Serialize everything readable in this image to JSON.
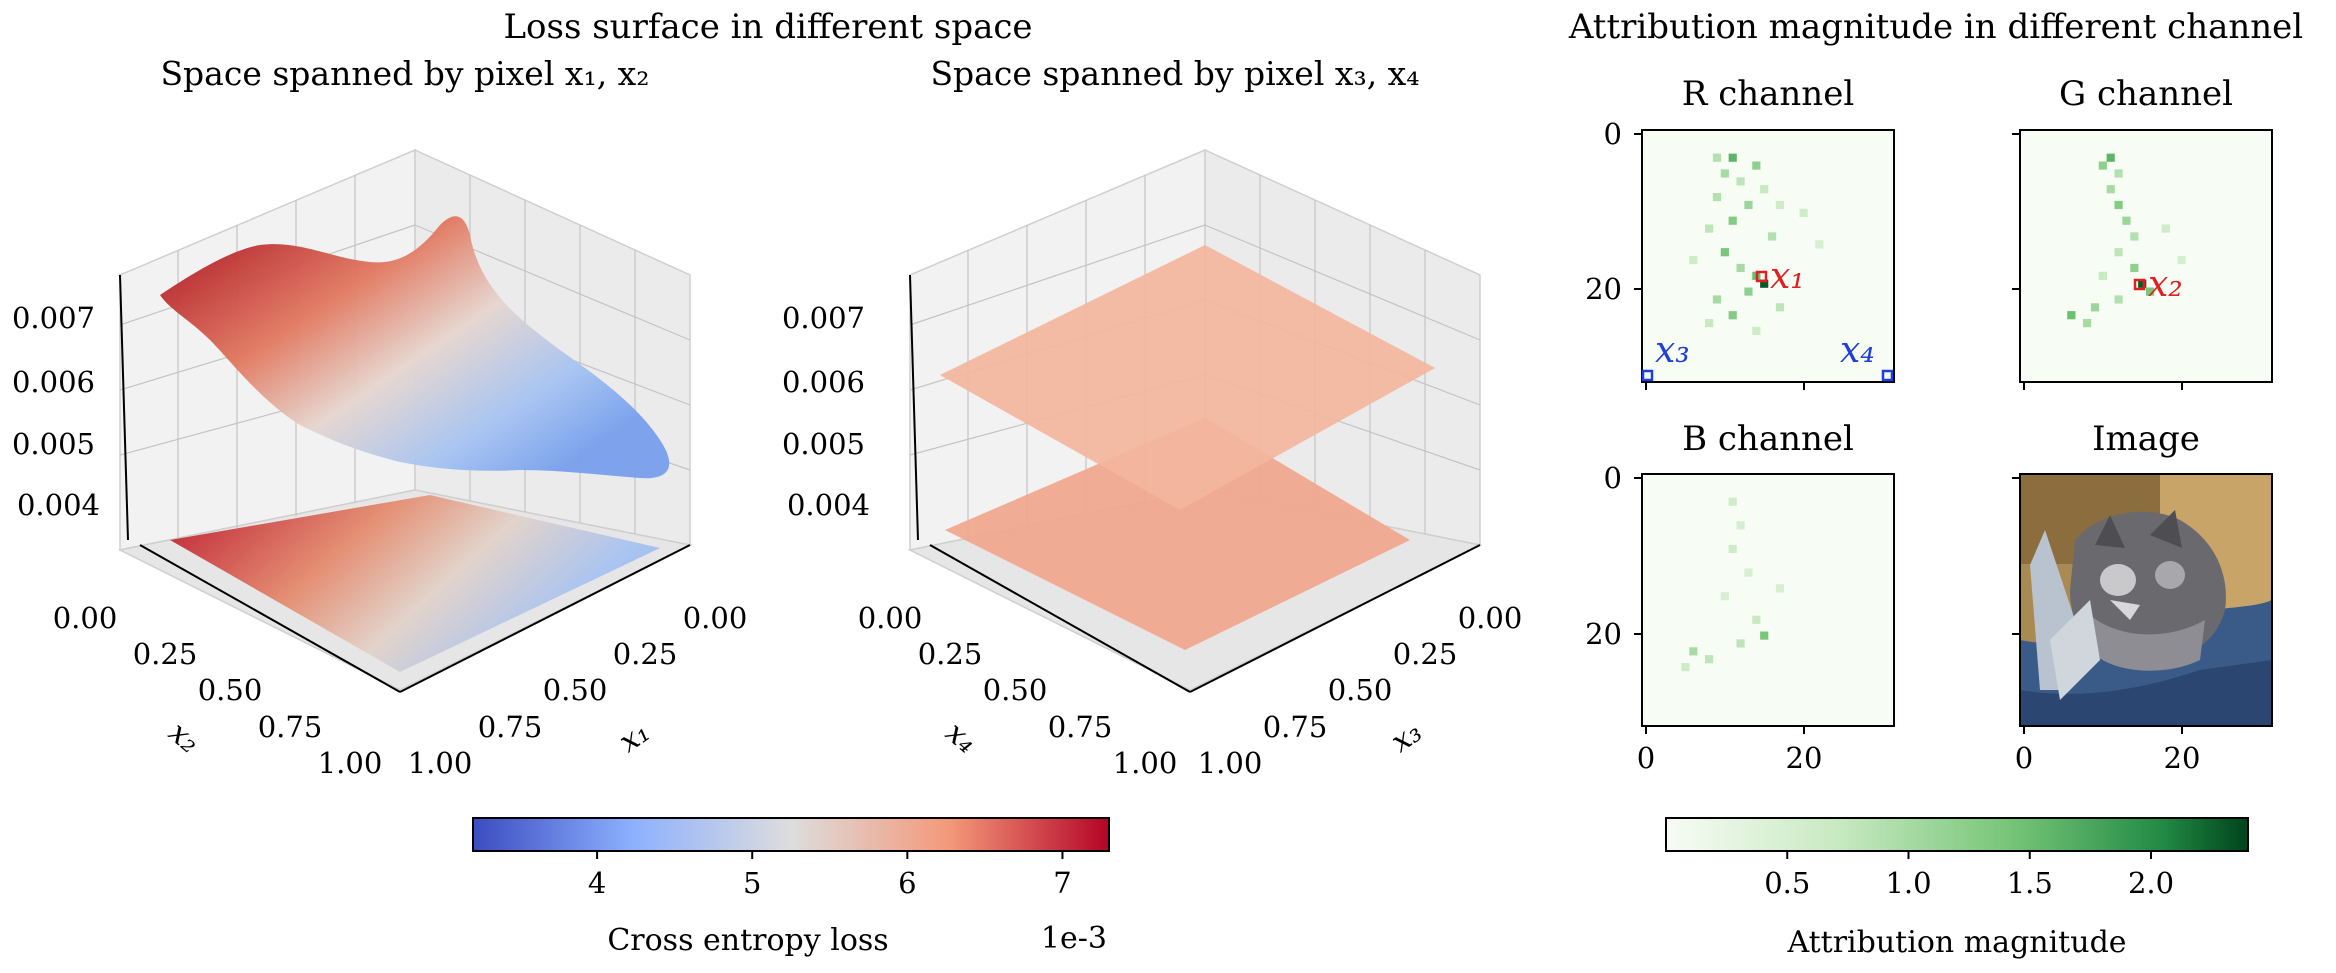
{
  "figure": {
    "left_title": "Loss surface in different space",
    "right_title": "Attribution magnitude in different channel"
  },
  "surface_plots": [
    {
      "id": "x1x2",
      "title": "Space spanned by pixel x₁, x₂",
      "xlabel": "x₁",
      "ylabel": "x₂",
      "z_ticks": [
        "0.007",
        "0.006",
        "0.005",
        "0.004"
      ],
      "x_ticks": [
        "0.00",
        "0.25",
        "0.50",
        "0.75",
        "1.00"
      ],
      "y_ticks": [
        "0.00",
        "0.25",
        "0.50",
        "0.75",
        "1.00"
      ]
    },
    {
      "id": "x3x4",
      "title": "Space spanned by pixel x₃, x₄",
      "xlabel": "x₃",
      "ylabel": "x₄",
      "z_ticks": [
        "0.007",
        "0.006",
        "0.005",
        "0.004"
      ],
      "x_ticks": [
        "0.00",
        "0.25",
        "0.50",
        "0.75",
        "1.00"
      ],
      "y_ticks": [
        "0.00",
        "0.25",
        "0.50",
        "0.75",
        "1.00"
      ]
    }
  ],
  "loss_colorbar": {
    "label": "Cross entropy loss",
    "offset": "1e-3",
    "ticks": [
      "4",
      "5",
      "6",
      "7"
    ],
    "range": [
      3.2,
      7.3
    ],
    "colormap": "coolwarm"
  },
  "heatmaps": [
    {
      "id": "r",
      "title": "R channel",
      "y_ticks": [
        "0",
        "20"
      ],
      "x_ticks": []
    },
    {
      "id": "g",
      "title": "G channel",
      "y_ticks": [
        "0",
        "20"
      ],
      "x_ticks": []
    },
    {
      "id": "b",
      "title": "B channel",
      "y_ticks": [
        "0",
        "20"
      ],
      "x_ticks": [
        "0",
        "20"
      ]
    },
    {
      "id": "img",
      "title": "Image",
      "y_ticks": [
        "0",
        "20"
      ],
      "x_ticks": [
        "0",
        "20"
      ]
    }
  ],
  "annotations": {
    "x1": "x₁",
    "x2": "x₂",
    "x3": "x₃",
    "x4": "x₄",
    "red_color": "#e02020",
    "blue_color": "#1f3fd8"
  },
  "attr_colorbar": {
    "label": "Attribution magnitude",
    "ticks": [
      "0.5",
      "1.0",
      "1.5",
      "2.0"
    ],
    "range": [
      0.0,
      2.4
    ],
    "colormap": "Greens"
  },
  "chart_data": [
    {
      "type": "surface",
      "title": "Space spanned by pixel x₁, x₂",
      "xlabel": "x₁",
      "ylabel": "x₂",
      "xlim": [
        0,
        1
      ],
      "ylim": [
        0,
        1
      ],
      "zlim": [
        0.0035,
        0.0075
      ],
      "x": [
        0.0,
        0.25,
        0.5,
        0.75,
        1.0
      ],
      "y": [
        0.0,
        0.25,
        0.5,
        0.75,
        1.0
      ],
      "z": [
        [
          0.0058,
          0.0051,
          0.0046,
          0.0043,
          0.0041
        ],
        [
          0.0063,
          0.0056,
          0.0049,
          0.0045,
          0.0042
        ],
        [
          0.0068,
          0.0062,
          0.0055,
          0.0048,
          0.0044
        ],
        [
          0.0073,
          0.0066,
          0.006,
          0.0052,
          0.0046
        ],
        [
          0.0072,
          0.007,
          0.0064,
          0.0056,
          0.0048
        ]
      ]
    },
    {
      "type": "surface",
      "title": "Space spanned by pixel x₃, x₄",
      "xlabel": "x₃",
      "ylabel": "x₄",
      "xlim": [
        0,
        1
      ],
      "ylim": [
        0,
        1
      ],
      "zlim": [
        0.0035,
        0.0075
      ],
      "z_constant": 0.0063
    },
    {
      "type": "heatmap",
      "title": "R channel",
      "grid_size": 32,
      "cells": [
        [
          3,
          9,
          0.9
        ],
        [
          3,
          11,
          1.6
        ],
        [
          4,
          14,
          1.2
        ],
        [
          5,
          10,
          1.0
        ],
        [
          6,
          12,
          0.8
        ],
        [
          7,
          15,
          0.7
        ],
        [
          8,
          9,
          0.9
        ],
        [
          9,
          13,
          1.1
        ],
        [
          11,
          11,
          1.3
        ],
        [
          12,
          8,
          0.8
        ],
        [
          13,
          16,
          0.9
        ],
        [
          15,
          10,
          1.4
        ],
        [
          17,
          12,
          1.0
        ],
        [
          18,
          14,
          1.5
        ],
        [
          19,
          15,
          2.3
        ],
        [
          20,
          13,
          1.2
        ],
        [
          21,
          9,
          1.0
        ],
        [
          22,
          17,
          0.8
        ],
        [
          23,
          11,
          1.3
        ],
        [
          24,
          8,
          0.7
        ],
        [
          10,
          20,
          0.6
        ],
        [
          14,
          22,
          0.5
        ],
        [
          16,
          6,
          0.6
        ],
        [
          25,
          14,
          0.6
        ],
        [
          9,
          17,
          0.6
        ]
      ]
    },
    {
      "type": "heatmap",
      "title": "G channel",
      "grid_size": 32,
      "cells": [
        [
          3,
          11,
          1.6
        ],
        [
          4,
          10,
          1.2
        ],
        [
          5,
          12,
          0.9
        ],
        [
          7,
          11,
          1.0
        ],
        [
          9,
          12,
          1.3
        ],
        [
          11,
          13,
          1.1
        ],
        [
          13,
          14,
          0.9
        ],
        [
          15,
          12,
          0.8
        ],
        [
          17,
          14,
          1.2
        ],
        [
          19,
          15,
          2.3
        ],
        [
          20,
          16,
          1.4
        ],
        [
          21,
          12,
          0.9
        ],
        [
          22,
          9,
          1.1
        ],
        [
          23,
          6,
          1.5
        ],
        [
          24,
          8,
          1.0
        ],
        [
          12,
          18,
          0.6
        ],
        [
          16,
          20,
          0.5
        ],
        [
          18,
          10,
          0.7
        ]
      ]
    },
    {
      "type": "heatmap",
      "title": "B channel",
      "grid_size": 32,
      "cells": [
        [
          3,
          11,
          0.6
        ],
        [
          6,
          12,
          0.5
        ],
        [
          9,
          11,
          0.6
        ],
        [
          12,
          13,
          0.5
        ],
        [
          15,
          10,
          0.5
        ],
        [
          18,
          14,
          0.7
        ],
        [
          20,
          15,
          1.4
        ],
        [
          21,
          12,
          0.8
        ],
        [
          22,
          6,
          1.0
        ],
        [
          23,
          8,
          0.8
        ],
        [
          24,
          5,
          0.6
        ],
        [
          14,
          17,
          0.5
        ]
      ]
    }
  ]
}
